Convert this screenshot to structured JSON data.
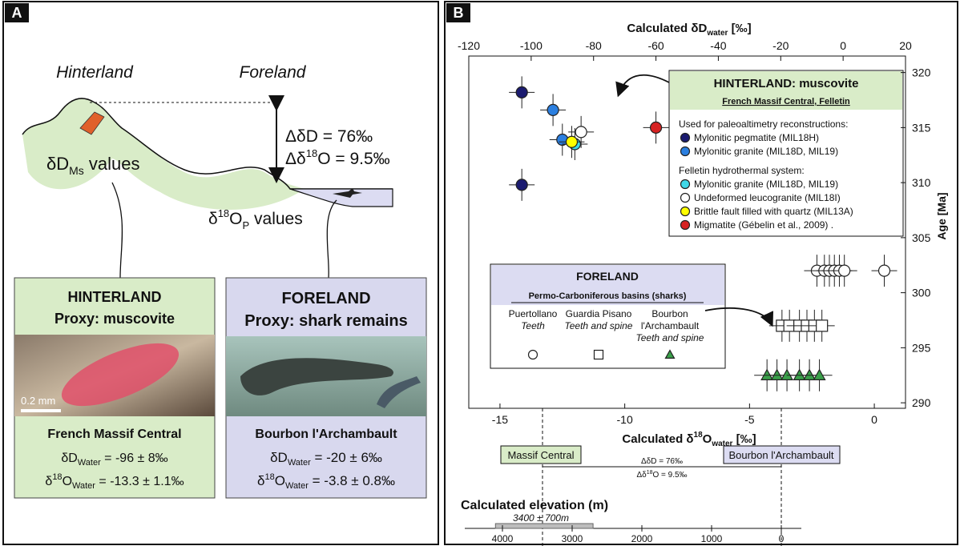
{
  "panel_a": {
    "label": "A",
    "hinterland": "Hinterland",
    "foreland": "Foreland",
    "delta_d": "ΔδD = 76‰",
    "delta_o": [
      "Δδ",
      "18",
      "O = 9.5‰"
    ],
    "ms_values": [
      "δD",
      "Ms",
      " values"
    ],
    "op_values": [
      "δ",
      "18",
      "O",
      "P",
      " values"
    ],
    "hinterland_box": {
      "title": "HINTERLAND",
      "proxy": "Proxy: muscovite",
      "scale": "0.2 mm",
      "site": "French Massif Central",
      "dd": [
        "δD",
        "Water",
        " = -96 ± 8‰"
      ],
      "do": [
        "δ",
        "18",
        "O",
        "Water",
        " = -13.3 ± 1.1‰"
      ]
    },
    "foreland_box": {
      "title": "FORELAND",
      "proxy": "Proxy: shark remains",
      "site": "Bourbon l'Archambault",
      "dd": [
        "δD",
        "Water",
        " = -20 ± 6‰"
      ],
      "do": [
        "δ",
        "18",
        "O",
        "Water",
        " = -3.8 ± 0.8‰"
      ]
    }
  },
  "chart_data": {
    "type": "scatter",
    "label": "B",
    "x_title": [
      "Calculated δD",
      "water",
      " [‰]"
    ],
    "x2_title": [
      "Calculated δ",
      "18",
      "O",
      "water",
      " [‰]"
    ],
    "y_title": "Age [Ma]",
    "xlim": [
      -120,
      20
    ],
    "xticks": [
      -120,
      -100,
      -80,
      -60,
      -40,
      -20,
      0,
      20
    ],
    "x2lim": [
      -16.25,
      1.25
    ],
    "x2ticks": [
      -15,
      -10,
      -5,
      0
    ],
    "ylim": [
      289.5,
      321.5
    ],
    "yticks": [
      290,
      295,
      300,
      305,
      310,
      315,
      320
    ],
    "hinterland_legend": {
      "title": "HINTERLAND: muscovite",
      "subtitle": "French Massif Central, Felletin",
      "group1": "Used for paleoaltimetry reconstructions:",
      "group2": "Felletin hydrothermal system:"
    },
    "foreland_legend": {
      "title": "FORELAND",
      "subtitle": "Permo-Carboniferous basins (sharks)"
    },
    "series": [
      {
        "name": "Mylonitic pegmatite (MIL18H)",
        "color": "#1b1b70",
        "marker": "circle",
        "x": [
          -103,
          -103
        ],
        "y": [
          318.2,
          309.8
        ]
      },
      {
        "name": "Mylonitic granite (MIL18D, MIL19)",
        "color": "#2b7fe0",
        "marker": "circle",
        "x": [
          -93,
          -90
        ],
        "y": [
          316.6,
          313.9
        ]
      },
      {
        "name": "Mylonitic granite (MIL18D, MIL19)",
        "color": "#3fd8e8",
        "marker": "circle",
        "x": [
          -86
        ],
        "y": [
          313.5
        ]
      },
      {
        "name": "Undeformed leucogranite (MIL18I)",
        "color": "#ffffff",
        "marker": "circle",
        "x": [
          -84
        ],
        "y": [
          314.6
        ]
      },
      {
        "name": "Brittle fault filled with quartz (MIL13A)",
        "color": "#ffff00",
        "marker": "circle",
        "x": [
          -87
        ],
        "y": [
          313.7
        ]
      },
      {
        "name": "Migmatite (Gébelin et al., 2009) .",
        "color": "#d62222",
        "marker": "circle",
        "x": [
          -60
        ],
        "y": [
          315
        ]
      },
      {
        "name": "Puertollano",
        "material": "Teeth",
        "color": "#ffffff",
        "marker": "circle",
        "axis": "x2",
        "x": [
          -2.3,
          -2.0,
          -1.8,
          -1.6,
          -1.4,
          -1.2,
          0.4
        ],
        "y": [
          302,
          302,
          302,
          302,
          302,
          302,
          302
        ]
      },
      {
        "name": "Guardia Pisano",
        "material": "Teeth and spine",
        "color": "#ffffff",
        "marker": "square",
        "axis": "x2",
        "x": [
          -3.7,
          -3.4,
          -3.0,
          -2.7,
          -2.4,
          -2.1
        ],
        "y": [
          297,
          297,
          297,
          297,
          297,
          297
        ]
      },
      {
        "name": "Bourbon l'Archambault",
        "material": "Teeth and spine",
        "color": "#3aa04a",
        "marker": "triangle",
        "axis": "x2",
        "x": [
          -4.3,
          -3.9,
          -3.5,
          -3.0,
          -2.6,
          -2.2
        ],
        "y": [
          292.5,
          292.5,
          292.5,
          292.5,
          292.5,
          292.5
        ]
      }
    ],
    "comparison": {
      "left": "Massif Central",
      "right": "Bourbon l'Archambault",
      "dd": "ΔδD = 76‰",
      "do": [
        "Δδ",
        "18",
        "O = 9.5‰"
      ]
    },
    "elevation": {
      "title": "Calculated elevation (m)",
      "estimate": "3400 ± 700m",
      "value": 3400,
      "error": 700,
      "lim": [
        4000,
        0
      ],
      "ticks": [
        4000,
        3000,
        2000,
        1000,
        0
      ]
    }
  }
}
